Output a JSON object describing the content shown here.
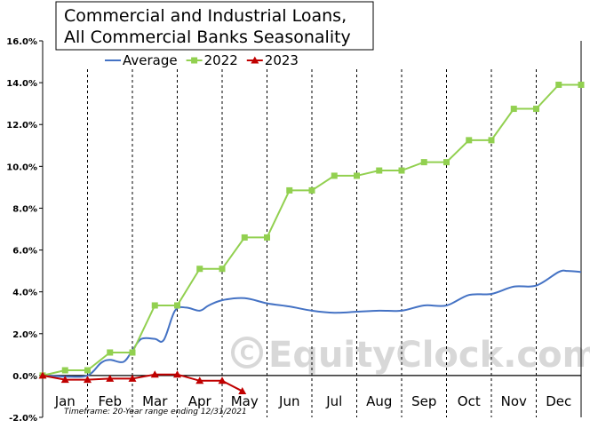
{
  "chart_data": {
    "type": "line",
    "title": "Commercial and Industrial Loans, All Commercial Banks Seasonality",
    "title_lines": [
      "Commercial and Industrial Loans,",
      "All Commercial Banks Seasonality"
    ],
    "months": [
      "Jan",
      "Feb",
      "Mar",
      "Apr",
      "May",
      "Jun",
      "Jul",
      "Aug",
      "Sep",
      "Oct",
      "Nov",
      "Dec"
    ],
    "y_ticks": [
      "-2.0%",
      "0.0%",
      "2.0%",
      "4.0%",
      "6.0%",
      "8.0%",
      "10.0%",
      "12.0%",
      "14.0%",
      "16.0%"
    ],
    "ylim": [
      -2,
      16
    ],
    "xlim": [
      0,
      12
    ],
    "legend": {
      "placement": "top-left"
    },
    "grid": {
      "vertical_month_lines": true,
      "horizontal": false
    },
    "series": [
      {
        "name": "Average",
        "color": "#4472c4",
        "marker": "none",
        "x": [
          0,
          0.5,
          1,
          1.3,
          1.5,
          1.8,
          2.0,
          2.2,
          2.5,
          2.7,
          2.95,
          3.2,
          3.5,
          3.7,
          4.0,
          4.5,
          5.0,
          5.5,
          6.0,
          6.5,
          7.0,
          7.5,
          8.0,
          8.5,
          9.0,
          9.5,
          10.0,
          10.5,
          11.0,
          11.5,
          11.7,
          12.0
        ],
        "y": [
          0,
          -0.05,
          0.0,
          0.6,
          0.75,
          0.65,
          1.2,
          1.75,
          1.75,
          1.7,
          3.1,
          3.25,
          3.1,
          3.35,
          3.6,
          3.7,
          3.45,
          3.3,
          3.1,
          3.0,
          3.05,
          3.1,
          3.1,
          3.35,
          3.35,
          3.85,
          3.9,
          4.25,
          4.3,
          4.95,
          5.0,
          4.95
        ]
      },
      {
        "name": "2022",
        "color": "#92d050",
        "marker": "square",
        "x": [
          0,
          0.5,
          1.0,
          1.5,
          2.0,
          2.5,
          3.0,
          3.5,
          4.0,
          4.5,
          5.0,
          5.5,
          6.0,
          6.5,
          7.0,
          7.5,
          8.0,
          8.5,
          9.0,
          9.5,
          10.0,
          10.5,
          11.0,
          11.5,
          12.0
        ],
        "y": [
          0.0,
          0.25,
          0.25,
          1.1,
          1.1,
          3.35,
          3.35,
          5.1,
          5.1,
          6.6,
          6.6,
          8.85,
          8.85,
          9.55,
          9.55,
          9.8,
          9.8,
          10.2,
          10.2,
          11.25,
          11.25,
          12.75,
          12.75,
          13.9,
          13.9
        ]
      },
      {
        "name": "2023",
        "color": "#c00000",
        "marker": "triangle",
        "x": [
          0,
          0.5,
          1.0,
          1.5,
          2.0,
          2.5,
          3.0,
          3.5,
          4.0,
          4.45
        ],
        "y": [
          0.0,
          -0.2,
          -0.2,
          -0.15,
          -0.15,
          0.05,
          0.05,
          -0.25,
          -0.25,
          -0.75
        ]
      }
    ],
    "footnote": "Timeframe: 20-Year range ending 12/31/2021",
    "watermark": "EquityClock.com"
  }
}
